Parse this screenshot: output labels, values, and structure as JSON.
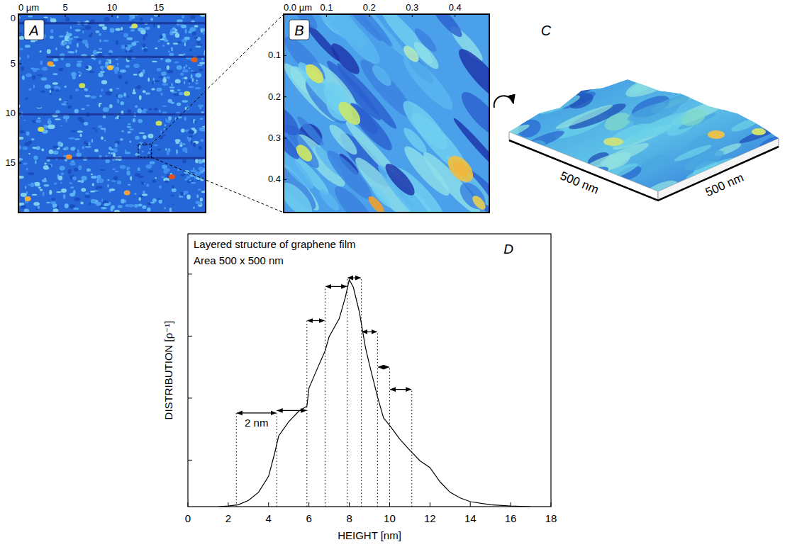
{
  "chart_data": [
    {
      "type": "image",
      "title": "A",
      "xlim": [
        0,
        20
      ],
      "xticks": [
        {
          "value": 0,
          "label": "0 µm"
        },
        5,
        10,
        15
      ],
      "ylim": [
        0,
        20
      ],
      "yticks": [
        0,
        5,
        10,
        15
      ]
    },
    {
      "type": "image",
      "title": "B",
      "xlim": [
        0,
        0.48
      ],
      "xticks": [
        {
          "value": 0,
          "label": "0.0 µm"
        },
        0.1,
        0.2,
        0.3,
        0.4
      ],
      "ylim": [
        0,
        0.48
      ],
      "yticks": [
        0.1,
        0.2,
        0.3,
        0.4
      ]
    },
    {
      "type": "surface",
      "title": "C",
      "x_label": "500 nm",
      "y_label": "500 nm"
    },
    {
      "type": "line",
      "title": "D",
      "annotations": [
        "Layered structure of graphene film",
        "Area 500 x 500 nm"
      ],
      "x_label": "HEIGHT [nm]",
      "y_label": "DISTRIBUTION [ρ⁻¹]",
      "color": "#000000",
      "x": [
        1.5,
        2.0,
        2.5,
        3.0,
        3.5,
        4.0,
        4.3,
        4.5,
        5.0,
        5.5,
        5.9,
        6.0,
        6.5,
        6.8,
        7.0,
        7.5,
        7.8,
        8.0,
        8.2,
        8.5,
        8.8,
        9.0,
        9.4,
        9.7,
        10.0,
        10.5,
        11.0,
        11.5,
        12.0,
        12.5,
        13.0,
        13.5,
        14.0,
        15.0,
        16.0,
        17.0
      ],
      "values": [
        0,
        0.01,
        0.03,
        0.1,
        0.23,
        0.49,
        0.86,
        1.14,
        1.37,
        1.54,
        1.62,
        1.91,
        2.29,
        2.51,
        2.74,
        3.03,
        3.37,
        3.66,
        3.54,
        3.14,
        2.57,
        2.29,
        1.77,
        1.43,
        1.31,
        1.09,
        0.91,
        0.74,
        0.63,
        0.4,
        0.23,
        0.14,
        0.08,
        0.03,
        0.01,
        0
      ],
      "xlim": [
        0,
        18
      ],
      "xticks": [
        0,
        2,
        4,
        6,
        8,
        10,
        12,
        14,
        16,
        18
      ],
      "ylim": [
        0,
        4.4
      ],
      "yticks": [
        0.75,
        1.75,
        2.75,
        3.75
      ],
      "tick_labels": "x",
      "layers": [
        {
          "x0": 2.4,
          "x1": 4.4,
          "y": 1.51,
          "label": "2 nm"
        },
        {
          "x0": 4.4,
          "x1": 5.9,
          "y": 1.55
        },
        {
          "x0": 5.9,
          "x1": 6.8,
          "y": 3.0
        },
        {
          "x0": 6.8,
          "x1": 7.9,
          "y": 3.55
        },
        {
          "x0": 7.9,
          "x1": 8.6,
          "y": 3.69
        },
        {
          "x0": 8.6,
          "x1": 9.4,
          "y": 2.82
        },
        {
          "x0": 9.4,
          "x1": 10.0,
          "y": 2.25
        },
        {
          "x0": 10.0,
          "x1": 11.1,
          "y": 1.89
        }
      ]
    }
  ]
}
